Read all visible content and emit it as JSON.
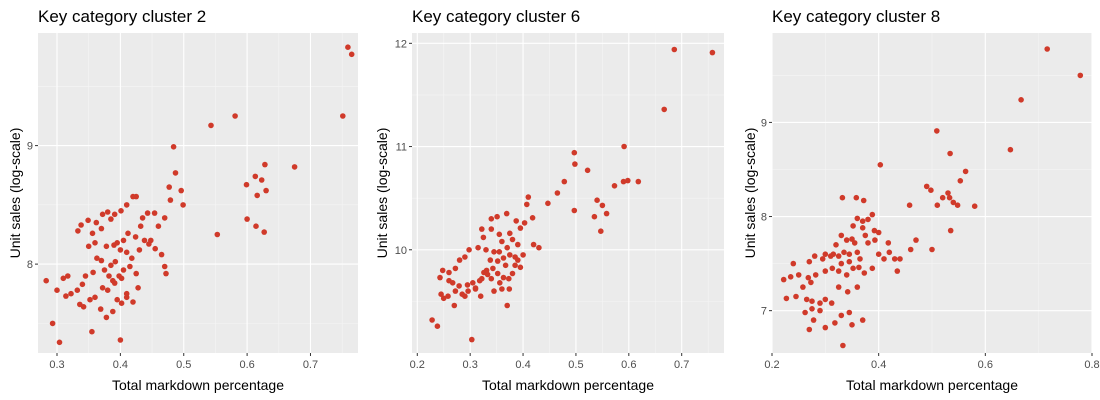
{
  "style": {
    "point_color": "#d03a2a",
    "panel_bg": "#ebebeb",
    "grid_major": "#ffffff",
    "grid_minor": "#f5f5f5",
    "tick_color": "#4d4d4d"
  },
  "chart_data": [
    {
      "type": "scatter",
      "title": "Key category cluster 2",
      "xlabel": "Total markdown percentage",
      "ylabel": "Unit sales (log-scale)",
      "xlim": [
        0.27,
        0.775
      ],
      "ylim": [
        7.25,
        9.95
      ],
      "xticks": [
        0.3,
        0.4,
        0.5,
        0.6,
        0.7
      ],
      "xtick_labels": [
        "0.3",
        "0.4",
        "0.5",
        "0.6",
        "0.7"
      ],
      "yticks": [
        8,
        9
      ],
      "ytick_labels": [
        "8",
        "9"
      ],
      "grid": true,
      "points": [
        [
          0.759,
          9.83
        ],
        [
          0.765,
          9.77
        ],
        [
          0.751,
          9.25
        ],
        [
          0.581,
          9.25
        ],
        [
          0.543,
          9.17
        ],
        [
          0.675,
          8.82
        ],
        [
          0.628,
          8.84
        ],
        [
          0.613,
          8.74
        ],
        [
          0.599,
          8.67
        ],
        [
          0.623,
          8.71
        ],
        [
          0.63,
          8.62
        ],
        [
          0.616,
          8.58
        ],
        [
          0.6,
          8.38
        ],
        [
          0.627,
          8.27
        ],
        [
          0.614,
          8.32
        ],
        [
          0.553,
          8.25
        ],
        [
          0.484,
          8.99
        ],
        [
          0.487,
          8.77
        ],
        [
          0.477,
          8.65
        ],
        [
          0.496,
          8.62
        ],
        [
          0.479,
          8.54
        ],
        [
          0.499,
          8.5
        ],
        [
          0.47,
          8.39
        ],
        [
          0.46,
          8.32
        ],
        [
          0.454,
          8.43
        ],
        [
          0.443,
          8.43
        ],
        [
          0.435,
          8.39
        ],
        [
          0.42,
          8.57
        ],
        [
          0.425,
          8.57
        ],
        [
          0.41,
          8.5
        ],
        [
          0.401,
          8.45
        ],
        [
          0.391,
          8.42
        ],
        [
          0.385,
          8.38
        ],
        [
          0.38,
          8.44
        ],
        [
          0.372,
          8.42
        ],
        [
          0.362,
          8.35
        ],
        [
          0.349,
          8.37
        ],
        [
          0.338,
          8.33
        ],
        [
          0.333,
          8.28
        ],
        [
          0.356,
          8.26
        ],
        [
          0.37,
          8.3
        ],
        [
          0.35,
          8.15
        ],
        [
          0.36,
          8.18
        ],
        [
          0.378,
          8.15
        ],
        [
          0.39,
          8.16
        ],
        [
          0.395,
          8.18
        ],
        [
          0.405,
          8.2
        ],
        [
          0.412,
          8.26
        ],
        [
          0.424,
          8.23
        ],
        [
          0.432,
          8.32
        ],
        [
          0.438,
          8.2
        ],
        [
          0.445,
          8.17
        ],
        [
          0.455,
          8.13
        ],
        [
          0.465,
          8.08
        ],
        [
          0.47,
          7.98
        ],
        [
          0.472,
          7.92
        ],
        [
          0.448,
          8.2
        ],
        [
          0.43,
          8.12
        ],
        [
          0.418,
          8.05
        ],
        [
          0.41,
          8.1
        ],
        [
          0.4,
          8.12
        ],
        [
          0.392,
          8.02
        ],
        [
          0.385,
          7.99
        ],
        [
          0.375,
          7.95
        ],
        [
          0.37,
          8.03
        ],
        [
          0.363,
          8.05
        ],
        [
          0.357,
          7.93
        ],
        [
          0.345,
          7.9
        ],
        [
          0.34,
          7.83
        ],
        [
          0.332,
          7.78
        ],
        [
          0.317,
          7.9
        ],
        [
          0.31,
          7.88
        ],
        [
          0.3,
          7.78
        ],
        [
          0.283,
          7.86
        ],
        [
          0.314,
          7.73
        ],
        [
          0.322,
          7.75
        ],
        [
          0.336,
          7.66
        ],
        [
          0.342,
          7.64
        ],
        [
          0.352,
          7.7
        ],
        [
          0.36,
          7.72
        ],
        [
          0.372,
          7.8
        ],
        [
          0.38,
          7.78
        ],
        [
          0.388,
          7.86
        ],
        [
          0.398,
          7.9
        ],
        [
          0.405,
          7.95
        ],
        [
          0.415,
          7.98
        ],
        [
          0.425,
          7.92
        ],
        [
          0.428,
          7.8
        ],
        [
          0.41,
          7.75
        ],
        [
          0.402,
          7.67
        ],
        [
          0.395,
          7.7
        ],
        [
          0.388,
          7.6
        ],
        [
          0.378,
          7.55
        ],
        [
          0.369,
          7.62
        ],
        [
          0.355,
          7.43
        ],
        [
          0.293,
          7.5
        ],
        [
          0.304,
          7.34
        ],
        [
          0.4,
          7.36
        ],
        [
          0.42,
          7.68
        ],
        [
          0.41,
          7.72
        ],
        [
          0.391,
          7.84
        ],
        [
          0.382,
          7.9
        ],
        [
          0.402,
          7.88
        ]
      ]
    },
    {
      "type": "scatter",
      "title": "Key category cluster 6",
      "xlabel": "Total markdown percentage",
      "ylabel": "Unit sales (log-scale)",
      "xlim": [
        0.19,
        0.78
      ],
      "ylim": [
        9.0,
        12.1
      ],
      "xticks": [
        0.2,
        0.3,
        0.4,
        0.5,
        0.6,
        0.7
      ],
      "xtick_labels": [
        "0.2",
        "0.3",
        "0.4",
        "0.5",
        "0.6",
        "0.7"
      ],
      "yticks": [
        10,
        11,
        12
      ],
      "ytick_labels": [
        "10",
        "11",
        "12"
      ],
      "grid": true,
      "points": [
        [
          0.686,
          11.94
        ],
        [
          0.758,
          11.91
        ],
        [
          0.667,
          11.36
        ],
        [
          0.591,
          11.0
        ],
        [
          0.497,
          10.94
        ],
        [
          0.598,
          10.67
        ],
        [
          0.59,
          10.66
        ],
        [
          0.618,
          10.66
        ],
        [
          0.573,
          10.62
        ],
        [
          0.498,
          10.83
        ],
        [
          0.522,
          10.77
        ],
        [
          0.478,
          10.66
        ],
        [
          0.465,
          10.55
        ],
        [
          0.447,
          10.45
        ],
        [
          0.41,
          10.51
        ],
        [
          0.407,
          10.44
        ],
        [
          0.497,
          10.38
        ],
        [
          0.54,
          10.48
        ],
        [
          0.55,
          10.43
        ],
        [
          0.535,
          10.32
        ],
        [
          0.558,
          10.35
        ],
        [
          0.547,
          10.18
        ],
        [
          0.418,
          10.31
        ],
        [
          0.403,
          10.26
        ],
        [
          0.387,
          10.28
        ],
        [
          0.369,
          10.35
        ],
        [
          0.351,
          10.32
        ],
        [
          0.34,
          10.3
        ],
        [
          0.34,
          10.2
        ],
        [
          0.322,
          10.2
        ],
        [
          0.325,
          10.12
        ],
        [
          0.395,
          10.21
        ],
        [
          0.375,
          10.16
        ],
        [
          0.355,
          10.15
        ],
        [
          0.36,
          10.08
        ],
        [
          0.38,
          10.1
        ],
        [
          0.39,
          10.05
        ],
        [
          0.37,
          10.02
        ],
        [
          0.345,
          9.98
        ],
        [
          0.33,
          10.0
        ],
        [
          0.315,
          10.02
        ],
        [
          0.298,
          10.0
        ],
        [
          0.29,
          9.93
        ],
        [
          0.28,
          9.9
        ],
        [
          0.272,
          9.82
        ],
        [
          0.26,
          9.78
        ],
        [
          0.248,
          9.8
        ],
        [
          0.243,
          9.73
        ],
        [
          0.26,
          9.7
        ],
        [
          0.267,
          9.68
        ],
        [
          0.279,
          9.65
        ],
        [
          0.295,
          9.66
        ],
        [
          0.31,
          9.63
        ],
        [
          0.322,
          9.72
        ],
        [
          0.331,
          9.8
        ],
        [
          0.343,
          9.82
        ],
        [
          0.352,
          9.89
        ],
        [
          0.363,
          9.92
        ],
        [
          0.375,
          9.95
        ],
        [
          0.385,
          9.93
        ],
        [
          0.4,
          9.95
        ],
        [
          0.42,
          10.05
        ],
        [
          0.43,
          10.02
        ],
        [
          0.395,
          9.83
        ],
        [
          0.38,
          9.77
        ],
        [
          0.373,
          9.72
        ],
        [
          0.363,
          9.73
        ],
        [
          0.352,
          9.77
        ],
        [
          0.34,
          9.72
        ],
        [
          0.333,
          9.76
        ],
        [
          0.326,
          9.78
        ],
        [
          0.318,
          9.7
        ],
        [
          0.305,
          9.68
        ],
        [
          0.296,
          9.6
        ],
        [
          0.285,
          9.57
        ],
        [
          0.272,
          9.6
        ],
        [
          0.258,
          9.55
        ],
        [
          0.245,
          9.57
        ],
        [
          0.25,
          9.53
        ],
        [
          0.27,
          9.46
        ],
        [
          0.29,
          9.55
        ],
        [
          0.31,
          9.62
        ],
        [
          0.32,
          9.55
        ],
        [
          0.345,
          9.6
        ],
        [
          0.356,
          9.68
        ],
        [
          0.367,
          9.85
        ],
        [
          0.385,
          9.85
        ],
        [
          0.36,
          9.62
        ],
        [
          0.37,
          9.46
        ],
        [
          0.338,
          9.9
        ],
        [
          0.39,
          9.9
        ],
        [
          0.355,
          9.98
        ],
        [
          0.374,
          9.62
        ],
        [
          0.228,
          9.32
        ],
        [
          0.238,
          9.26
        ],
        [
          0.303,
          9.13
        ]
      ]
    },
    {
      "type": "scatter",
      "title": "Key category cluster 8",
      "xlabel": "Total markdown percentage",
      "ylabel": "Unit sales (log-scale)",
      "xlim": [
        0.2,
        0.8
      ],
      "ylim": [
        6.55,
        9.95
      ],
      "xticks": [
        0.2,
        0.4,
        0.6,
        0.8
      ],
      "xtick_labels": [
        "0.2",
        "0.4",
        "0.6",
        "0.8"
      ],
      "yticks": [
        7,
        8,
        9
      ],
      "ytick_labels": [
        "7",
        "8",
        "9"
      ],
      "grid": true,
      "points": [
        [
          0.716,
          9.78
        ],
        [
          0.778,
          9.5
        ],
        [
          0.667,
          9.24
        ],
        [
          0.647,
          8.71
        ],
        [
          0.509,
          8.91
        ],
        [
          0.534,
          8.67
        ],
        [
          0.403,
          8.55
        ],
        [
          0.563,
          8.48
        ],
        [
          0.553,
          8.38
        ],
        [
          0.49,
          8.32
        ],
        [
          0.498,
          8.28
        ],
        [
          0.52,
          8.2
        ],
        [
          0.533,
          8.2
        ],
        [
          0.548,
          8.12
        ],
        [
          0.58,
          8.11
        ],
        [
          0.458,
          8.12
        ],
        [
          0.51,
          8.12
        ],
        [
          0.53,
          8.25
        ],
        [
          0.54,
          8.15
        ],
        [
          0.372,
          8.17
        ],
        [
          0.358,
          8.2
        ],
        [
          0.332,
          8.2
        ],
        [
          0.388,
          8.02
        ],
        [
          0.38,
          7.97
        ],
        [
          0.37,
          7.95
        ],
        [
          0.36,
          7.98
        ],
        [
          0.352,
          7.9
        ],
        [
          0.37,
          7.88
        ],
        [
          0.392,
          7.85
        ],
        [
          0.4,
          7.83
        ],
        [
          0.375,
          7.8
        ],
        [
          0.38,
          7.72
        ],
        [
          0.393,
          7.75
        ],
        [
          0.33,
          7.8
        ],
        [
          0.34,
          7.75
        ],
        [
          0.35,
          7.76
        ],
        [
          0.32,
          7.7
        ],
        [
          0.315,
          7.6
        ],
        [
          0.31,
          7.58
        ],
        [
          0.325,
          7.58
        ],
        [
          0.335,
          7.62
        ],
        [
          0.345,
          7.6
        ],
        [
          0.36,
          7.62
        ],
        [
          0.365,
          7.55
        ],
        [
          0.345,
          7.52
        ],
        [
          0.33,
          7.5
        ],
        [
          0.3,
          7.6
        ],
        [
          0.295,
          7.55
        ],
        [
          0.28,
          7.58
        ],
        [
          0.27,
          7.52
        ],
        [
          0.24,
          7.5
        ],
        [
          0.222,
          7.33
        ],
        [
          0.235,
          7.36
        ],
        [
          0.25,
          7.38
        ],
        [
          0.268,
          7.35
        ],
        [
          0.282,
          7.38
        ],
        [
          0.3,
          7.42
        ],
        [
          0.313,
          7.45
        ],
        [
          0.325,
          7.42
        ],
        [
          0.34,
          7.38
        ],
        [
          0.352,
          7.45
        ],
        [
          0.363,
          7.46
        ],
        [
          0.373,
          7.4
        ],
        [
          0.388,
          7.45
        ],
        [
          0.273,
          7.3
        ],
        [
          0.258,
          7.25
        ],
        [
          0.245,
          7.15
        ],
        [
          0.227,
          7.13
        ],
        [
          0.265,
          7.12
        ],
        [
          0.275,
          7.1
        ],
        [
          0.29,
          7.08
        ],
        [
          0.3,
          7.12
        ],
        [
          0.312,
          7.08
        ],
        [
          0.29,
          7.0
        ],
        [
          0.275,
          7.02
        ],
        [
          0.262,
          6.98
        ],
        [
          0.278,
          6.9
        ],
        [
          0.27,
          6.8
        ],
        [
          0.3,
          6.82
        ],
        [
          0.318,
          6.87
        ],
        [
          0.33,
          6.95
        ],
        [
          0.345,
          6.98
        ],
        [
          0.35,
          6.85
        ],
        [
          0.37,
          6.9
        ],
        [
          0.333,
          6.63
        ],
        [
          0.5,
          7.65
        ],
        [
          0.46,
          7.65
        ],
        [
          0.43,
          7.55
        ],
        [
          0.42,
          7.62
        ],
        [
          0.44,
          7.55
        ],
        [
          0.4,
          7.6
        ],
        [
          0.41,
          7.55
        ],
        [
          0.435,
          7.42
        ],
        [
          0.355,
          7.72
        ],
        [
          0.535,
          7.85
        ],
        [
          0.418,
          7.72
        ],
        [
          0.47,
          7.75
        ],
        [
          0.36,
          7.25
        ],
        [
          0.342,
          7.2
        ],
        [
          0.325,
          7.25
        ]
      ]
    }
  ]
}
